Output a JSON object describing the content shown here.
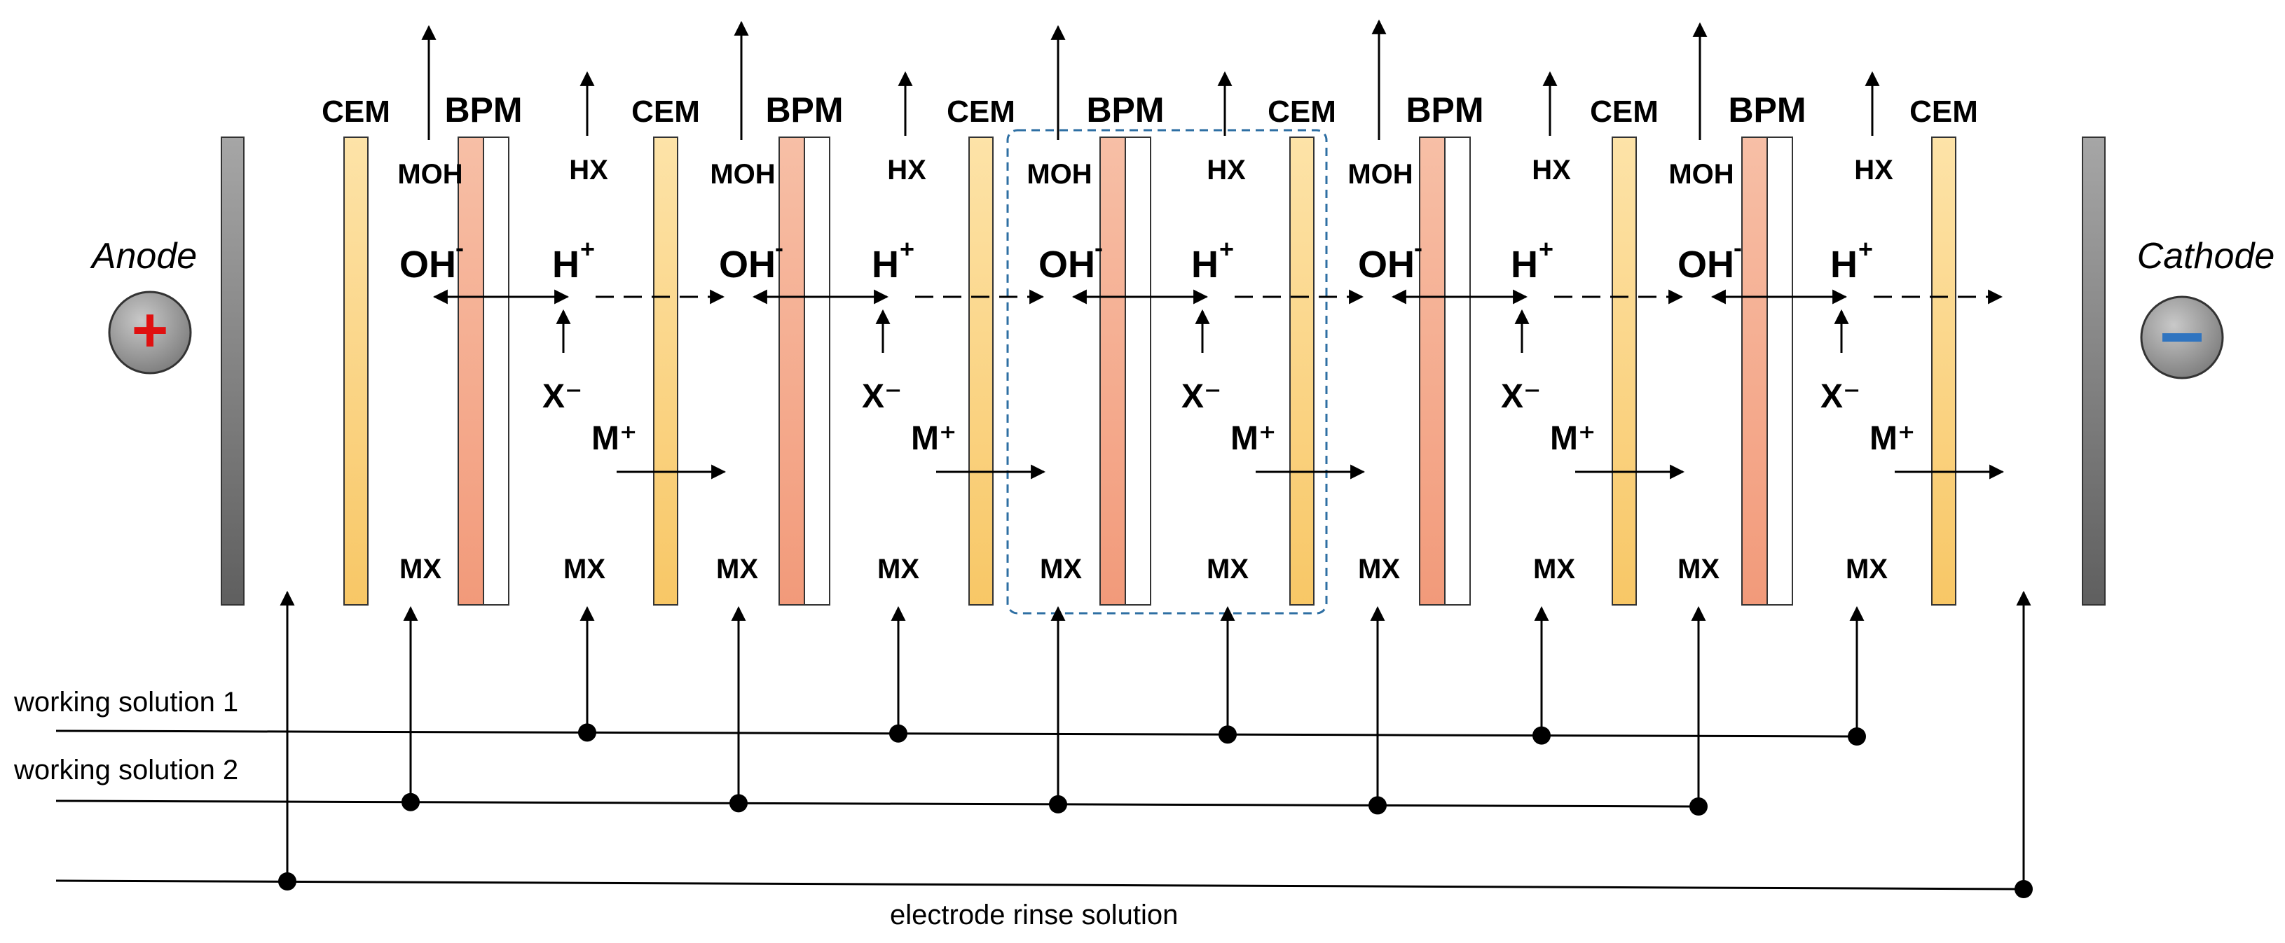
{
  "diagram": {
    "electrodes": {
      "anode": {
        "label": "Anode",
        "sign": "+",
        "sign_color": "#e01010"
      },
      "cathode": {
        "label": "Cathode",
        "sign": "−",
        "sign_color": "#2f74c0"
      }
    },
    "membrane_labels": {
      "cem": "CEM",
      "bpm": "BPM"
    },
    "products": {
      "base": "MOH",
      "acid": "HX",
      "salt": "MX"
    },
    "ions": {
      "hydroxide": "OH",
      "hydroxide_charge": "-",
      "proton": "H",
      "proton_charge": "+",
      "anion": "X⁻",
      "cation": "M⁺"
    },
    "solutions": {
      "working_1": "working solution 1",
      "working_2": "working solution 2",
      "rinse": "electrode rinse solution"
    },
    "colors": {
      "electrode": "#7a7a7a",
      "cem_fill": "#fcd98c",
      "bpm_fill": "#f4a285",
      "repeat_unit_outline": "#2e6fa3"
    }
  }
}
